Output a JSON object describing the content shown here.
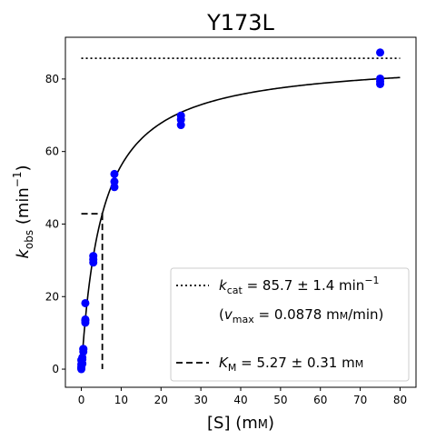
{
  "chart_data": {
    "type": "scatter",
    "title": "Y173L",
    "xlabel": {
      "main": "[S] (m",
      "unit_sc": "M",
      "close": ")"
    },
    "ylabel": {
      "k": "k",
      "sub": "obs",
      "mid": " (min",
      "sup": "−1",
      "close": ")"
    },
    "xlim": [
      -4,
      84
    ],
    "ylim": [
      -5,
      91.5
    ],
    "xticks": [
      0,
      10,
      20,
      30,
      40,
      50,
      60,
      70,
      80
    ],
    "yticks": [
      0,
      20,
      40,
      60,
      80
    ],
    "grid": false,
    "legend_position": "bottom-right",
    "series": [
      {
        "kind": "points",
        "color": "#0000ff",
        "x": [
          0,
          0,
          0,
          0,
          0,
          0.25,
          0.25,
          0.25,
          0.5,
          0.5,
          0.5,
          1,
          1,
          1,
          1,
          3,
          3,
          3,
          8.3,
          8.3,
          8.3,
          25,
          25,
          25,
          75,
          75,
          75,
          75
        ],
        "y": [
          0,
          0.3,
          0.6,
          1.3,
          2.5,
          1.5,
          2.7,
          3.2,
          4.8,
          5.4,
          5.6,
          12.8,
          13.4,
          13.7,
          18.2,
          29.4,
          30.2,
          31.2,
          50.2,
          51.7,
          53.8,
          67.3,
          68.8,
          69.9,
          78.6,
          79.3,
          80.1,
          87.3
        ]
      },
      {
        "kind": "fit",
        "color": "#000000",
        "vmax": 85.7,
        "km": 5.27,
        "x_range": [
          0,
          80
        ]
      },
      {
        "kind": "kcat-line",
        "color": "#000000",
        "y": 85.7,
        "x_range": [
          0,
          80
        ]
      },
      {
        "kind": "km-line",
        "color": "#000000",
        "x": 5.27,
        "y": 42.85
      }
    ],
    "legend": [
      {
        "kind": "dotted",
        "k": "k",
        "sub": "cat",
        "text": " = 85.7 ± 1.4 min",
        "sup": "−1"
      },
      {
        "kind": "none",
        "open": "(",
        "v": "v",
        "sub": "max",
        "text": " = 0.0878 m",
        "unit_sc": "M",
        "close": "/min)"
      },
      {
        "kind": "dashed",
        "k": "K",
        "sub": "M",
        "text": " = 5.27 ± 0.31 m",
        "unit_sc": "M"
      }
    ]
  }
}
